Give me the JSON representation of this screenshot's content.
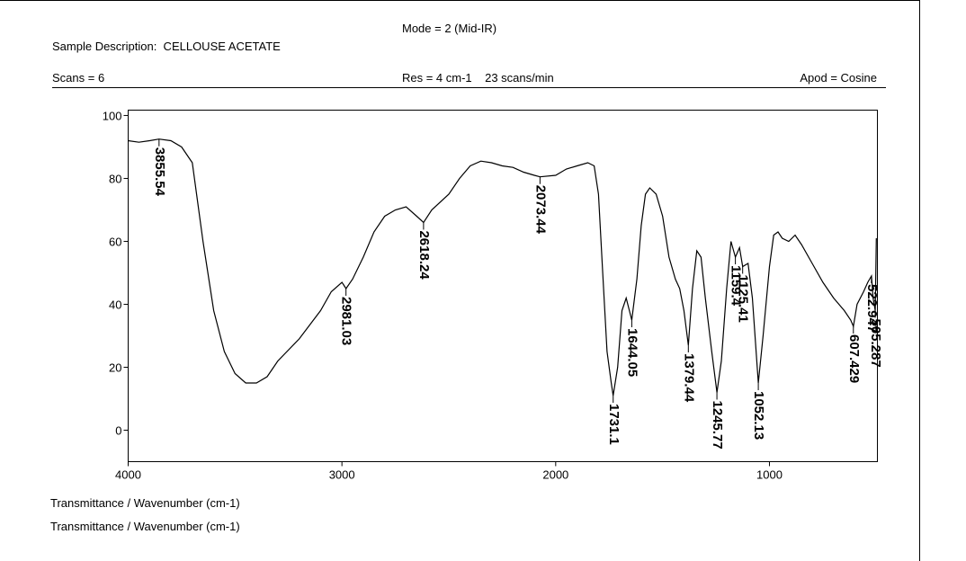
{
  "header": {
    "mode": "Mode = 2 (Mid-IR)",
    "sample": "Sample Description:  CELLOUSE ACETATE",
    "scans": "Scans = 6",
    "res": "Res = 4 cm-1    23 scans/min",
    "apod": "Apod = Cosine"
  },
  "chart_data": {
    "type": "line",
    "color": "#000000",
    "x": [
      4000,
      3950,
      3900,
      3855.54,
      3800,
      3750,
      3700,
      3650,
      3600,
      3550,
      3500,
      3450,
      3400,
      3350,
      3300,
      3200,
      3100,
      3050,
      3000,
      2981.03,
      2950,
      2900,
      2850,
      2800,
      2750,
      2700,
      2650,
      2618.24,
      2580,
      2500,
      2450,
      2400,
      2350,
      2300,
      2250,
      2200,
      2150,
      2100,
      2073.44,
      2000,
      1950,
      1900,
      1850,
      1820,
      1800,
      1780,
      1760,
      1740,
      1731.1,
      1710,
      1690,
      1670,
      1644.05,
      1620,
      1600,
      1580,
      1560,
      1530,
      1500,
      1470,
      1440,
      1420,
      1400,
      1379.44,
      1360,
      1340,
      1320,
      1300,
      1270,
      1245.77,
      1225,
      1200,
      1180,
      1159.4,
      1140,
      1125.41,
      1100,
      1080,
      1052.13,
      1030,
      1000,
      980,
      960,
      940,
      910,
      880,
      850,
      800,
      750,
      700,
      650,
      620,
      607.429,
      590,
      560,
      540,
      522.947,
      515,
      505.287,
      500
    ],
    "values": [
      92,
      91.5,
      92,
      92.5,
      92,
      90,
      85,
      60,
      38,
      25,
      18,
      15,
      15,
      17,
      22,
      29,
      38,
      44,
      47,
      45,
      48,
      55,
      63,
      68,
      70,
      71,
      68,
      66,
      70,
      75,
      80,
      84,
      85.5,
      85,
      84,
      83.5,
      82,
      81,
      80.5,
      81,
      83,
      84,
      85,
      84,
      75,
      50,
      25,
      15,
      11,
      20,
      38,
      42,
      35,
      48,
      65,
      75,
      77,
      75,
      68,
      55,
      48,
      45,
      38,
      27,
      45,
      57,
      55,
      42,
      25,
      12,
      22,
      45,
      60,
      55,
      58,
      52,
      53,
      42,
      15,
      30,
      52,
      62,
      63,
      61,
      60,
      62,
      59,
      53,
      47,
      42,
      38,
      35,
      33,
      40,
      44,
      47,
      49,
      42,
      38,
      61
    ],
    "peaks": [
      3855.54,
      2981.03,
      2618.24,
      2073.44,
      1731.1,
      1644.05,
      1379.44,
      1245.77,
      1159.4,
      1125.41,
      1052.13,
      607.429,
      505.287,
      522.947
    ],
    "xlim": [
      4000,
      495
    ],
    "ylim": [
      -10,
      101.7
    ],
    "xticks": [
      4000,
      3000,
      2000,
      1000
    ],
    "yticks": [
      0,
      20,
      40,
      60,
      80,
      100
    ],
    "x_label": "Transmittance / Wavenumber (cm-1)",
    "y_label": "Transmittance / Wavenumber (cm-1)"
  }
}
